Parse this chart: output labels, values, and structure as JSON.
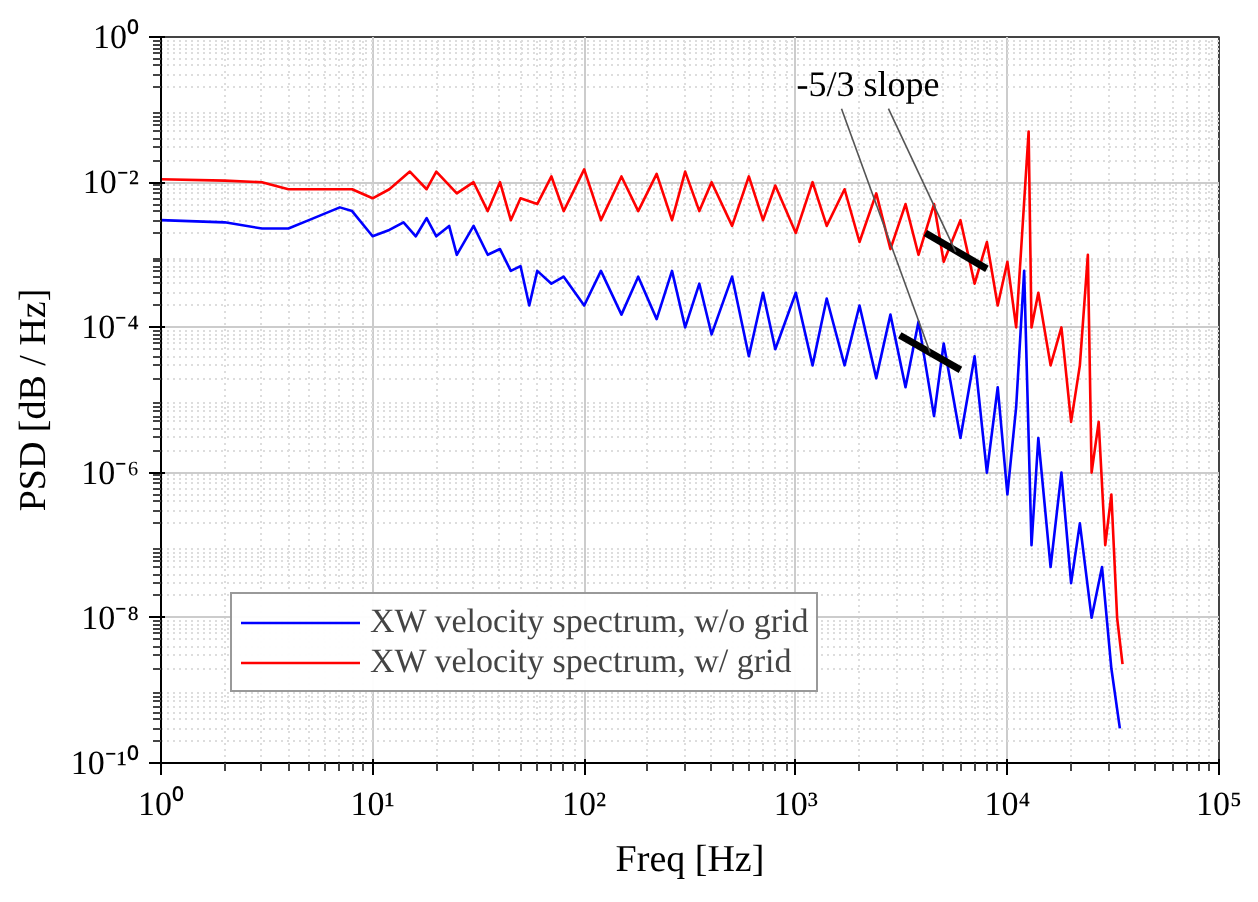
{
  "chart_data": {
    "type": "line",
    "xlabel": "Freq [Hz]",
    "ylabel": "PSD [dB / Hz]",
    "log": "xy",
    "grid": true,
    "legend": "bottom left",
    "line_style": "solid",
    "marker": "none",
    "xlim": [
      1,
      100000
    ],
    "ylim": [
      1e-10,
      1
    ],
    "xticks": [
      {
        "value": 1,
        "label": "10⁰"
      },
      {
        "value": 10,
        "label": "10¹"
      },
      {
        "value": 100,
        "label": "10²"
      },
      {
        "value": 1000,
        "label": "10³"
      },
      {
        "value": 10000,
        "label": "10⁴"
      },
      {
        "value": 100000,
        "label": "10⁵"
      }
    ],
    "yticks": [
      {
        "value": 1e-10,
        "label": "10⁻¹⁰"
      },
      {
        "value": 1e-08,
        "label": "10⁻⁸"
      },
      {
        "value": 1e-06,
        "label": "10⁻⁶"
      },
      {
        "value": 0.0001,
        "label": "10⁻⁴"
      },
      {
        "value": 0.01,
        "label": "10⁻²"
      },
      {
        "value": 1,
        "label": "10⁰"
      }
    ],
    "annotations": [
      {
        "text": "-5/3 slope",
        "x": 5700,
        "y": 0.0011
      }
    ],
    "series": [
      {
        "name": "XW velocity spectrum, w/o grid",
        "color": "#0000ff",
        "x": [
          1,
          2,
          3,
          4,
          5,
          7,
          8,
          10,
          12,
          14,
          16,
          18,
          20,
          23,
          25,
          30,
          35,
          40,
          45,
          50,
          55,
          60,
          70,
          80,
          100,
          120,
          150,
          180,
          220,
          260,
          300,
          350,
          400,
          500,
          600,
          700,
          800,
          1000,
          1200,
          1400,
          1700,
          2000,
          2400,
          2800,
          3300,
          3800,
          4500,
          5000,
          6000,
          7000,
          8000,
          9000,
          10000,
          11000,
          12000,
          13000,
          14000,
          16000,
          18000,
          20000,
          22000,
          25000,
          28000,
          31000,
          34000
        ],
        "values": [
          0.003,
          0.0028,
          0.0023,
          0.0023,
          0.003,
          0.0045,
          0.004,
          0.0018,
          0.0022,
          0.0028,
          0.0018,
          0.0032,
          0.0018,
          0.0025,
          0.001,
          0.0025,
          0.001,
          0.0012,
          0.0006,
          0.0007,
          0.0002,
          0.0006,
          0.0004,
          0.0005,
          0.0002,
          0.0006,
          0.00015,
          0.0005,
          0.00013,
          0.0006,
          0.0001,
          0.0004,
          8e-05,
          0.0005,
          4e-05,
          0.0003,
          5e-05,
          0.0003,
          3e-05,
          0.00025,
          3e-05,
          0.0002,
          2e-05,
          0.00015,
          1.5e-05,
          0.00012,
          6e-06,
          6e-05,
          3e-06,
          4e-05,
          1e-06,
          1.5e-05,
          5e-07,
          8e-06,
          0.0006,
          1e-07,
          3e-06,
          5e-08,
          1e-06,
          3e-08,
          2e-07,
          1e-08,
          5e-08,
          2e-09,
          3e-10
        ]
      },
      {
        "name": "XW velocity spectrum, w/ grid",
        "color": "#ff0000",
        "x": [
          1,
          2,
          3,
          4,
          6,
          8,
          10,
          12,
          15,
          18,
          20,
          25,
          30,
          35,
          40,
          45,
          50,
          60,
          70,
          80,
          100,
          120,
          150,
          180,
          220,
          260,
          300,
          350,
          400,
          500,
          600,
          700,
          800,
          1000,
          1200,
          1400,
          1700,
          2000,
          2400,
          2800,
          3300,
          3800,
          4500,
          5000,
          6000,
          7000,
          8000,
          9000,
          10000,
          11000,
          12600,
          13000,
          14000,
          16000,
          18000,
          20000,
          22000,
          24000,
          25000,
          27000,
          29000,
          31000,
          33000,
          35000
        ],
        "values": [
          0.011,
          0.0105,
          0.01,
          0.008,
          0.008,
          0.008,
          0.006,
          0.008,
          0.014,
          0.008,
          0.014,
          0.007,
          0.01,
          0.004,
          0.01,
          0.003,
          0.006,
          0.005,
          0.012,
          0.004,
          0.015,
          0.003,
          0.012,
          0.004,
          0.013,
          0.003,
          0.014,
          0.004,
          0.01,
          0.0025,
          0.012,
          0.003,
          0.009,
          0.002,
          0.01,
          0.0025,
          0.008,
          0.0015,
          0.007,
          0.0012,
          0.005,
          0.001,
          0.005,
          0.0008,
          0.003,
          0.0004,
          0.0015,
          0.0002,
          0.0008,
          0.0001,
          0.05,
          0.0001,
          0.0003,
          3e-05,
          0.0001,
          5e-06,
          3e-05,
          0.001,
          1e-06,
          5e-06,
          1e-07,
          5e-07,
          1e-08,
          2.3e-09
        ]
      },
      {
        "color": "#000000",
        "x": [
          3100,
          6000
        ],
        "values": [
          7.8e-05,
          2.6e-05
        ]
      },
      {
        "color": "#000000",
        "x": [
          4100,
          8000
        ],
        "values": [
          0.002,
          0.00064
        ]
      }
    ]
  }
}
